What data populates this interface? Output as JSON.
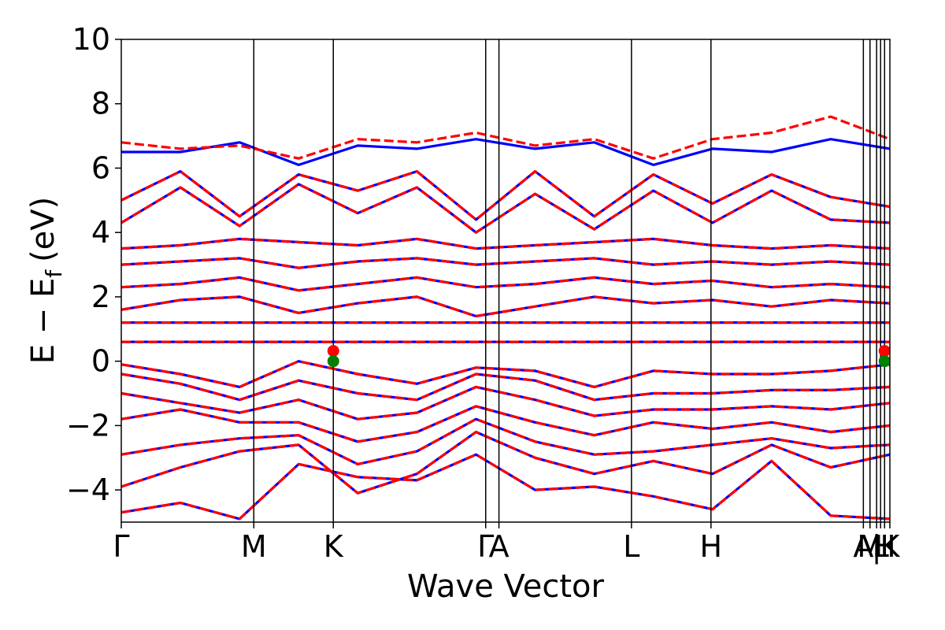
{
  "chart_data": {
    "type": "line",
    "title": "",
    "xlabel": "Wave Vector",
    "ylabel": "E − E",
    "ylabel_sub": "f",
    "ylabel_unit": "(eV)",
    "ylim": [
      -5,
      10
    ],
    "yticks": [
      10,
      8,
      6,
      4,
      2,
      0,
      -2,
      -4
    ],
    "ytick_labels": [
      "10",
      "8",
      "6",
      "4",
      "2",
      "0",
      "−2",
      "−4"
    ],
    "x_range": [
      0,
      5.8
    ],
    "high_symmetry_points": [
      {
        "label": "Γ",
        "x": 0.0
      },
      {
        "label": "M",
        "x": 1.0
      },
      {
        "label": "K",
        "x": 1.6
      },
      {
        "label": "Γ",
        "x": 2.75
      },
      {
        "label": "A",
        "x": 2.85
      },
      {
        "label": "L",
        "x": 3.85
      },
      {
        "label": "H",
        "x": 4.45
      },
      {
        "label": "A",
        "x": 5.6
      },
      {
        "label": "M",
        "x": 5.65
      },
      {
        "label": "|",
        "x": 5.7
      },
      {
        "label": "L",
        "x": 5.73
      },
      {
        "label": "H",
        "x": 5.76
      },
      {
        "label": "K",
        "x": 5.8
      }
    ],
    "grid": false,
    "legend": "none",
    "colors": {
      "series_a": "#0000ff",
      "series_b": "#ff0000",
      "vbm": "#008000",
      "cbm": "#ff0000"
    },
    "series": [
      {
        "style": "solid",
        "color": "#0000ff",
        "bands": [
          [
            -4.7,
            -4.4,
            -4.9,
            -3.2,
            -3.6,
            -3.7,
            -2.9,
            -4.0,
            -3.9,
            -4.2,
            -4.6,
            -3.1,
            -4.8,
            -4.9
          ],
          [
            -3.9,
            -3.3,
            -2.8,
            -2.6,
            -4.1,
            -3.5,
            -2.2,
            -3.0,
            -3.5,
            -3.1,
            -3.5,
            -2.6,
            -3.3,
            -2.9
          ],
          [
            -2.9,
            -2.6,
            -2.4,
            -2.3,
            -3.2,
            -2.8,
            -1.8,
            -2.5,
            -2.9,
            -2.8,
            -2.6,
            -2.4,
            -2.7,
            -2.6
          ],
          [
            -1.8,
            -1.5,
            -1.9,
            -1.9,
            -2.5,
            -2.2,
            -1.4,
            -1.9,
            -2.3,
            -1.9,
            -2.1,
            -1.9,
            -2.2,
            -2.0
          ],
          [
            -1.0,
            -1.3,
            -1.6,
            -1.2,
            -1.8,
            -1.6,
            -0.8,
            -1.2,
            -1.7,
            -1.5,
            -1.5,
            -1.4,
            -1.5,
            -1.3
          ],
          [
            -0.4,
            -0.7,
            -1.2,
            -0.6,
            -1.0,
            -1.2,
            -0.4,
            -0.6,
            -1.2,
            -1.0,
            -1.0,
            -0.9,
            -0.9,
            -0.8
          ],
          [
            -0.1,
            -0.4,
            -0.8,
            0.0,
            -0.4,
            -0.7,
            -0.2,
            -0.3,
            -0.8,
            -0.3,
            -0.4,
            -0.4,
            -0.3,
            -0.1
          ],
          [
            0.6,
            0.6,
            0.6,
            0.6,
            0.6,
            0.6,
            0.6,
            0.6,
            0.6,
            0.6,
            0.6,
            0.6,
            0.6,
            0.6
          ],
          [
            1.2,
            1.2,
            1.2,
            1.2,
            1.2,
            1.2,
            1.2,
            1.2,
            1.2,
            1.2,
            1.2,
            1.2,
            1.2,
            1.2
          ],
          [
            1.6,
            1.9,
            2.0,
            1.5,
            1.8,
            2.0,
            1.4,
            1.7,
            2.0,
            1.8,
            1.9,
            1.7,
            1.9,
            1.8
          ],
          [
            2.3,
            2.4,
            2.6,
            2.2,
            2.4,
            2.6,
            2.3,
            2.4,
            2.6,
            2.4,
            2.5,
            2.3,
            2.4,
            2.3
          ],
          [
            3.0,
            3.1,
            3.2,
            2.9,
            3.1,
            3.2,
            3.0,
            3.1,
            3.2,
            3.0,
            3.1,
            3.0,
            3.1,
            3.0
          ],
          [
            3.5,
            3.6,
            3.8,
            3.7,
            3.6,
            3.8,
            3.5,
            3.6,
            3.7,
            3.8,
            3.6,
            3.5,
            3.6,
            3.5
          ],
          [
            4.3,
            5.4,
            4.2,
            5.5,
            4.6,
            5.4,
            4.0,
            5.2,
            4.1,
            5.3,
            4.3,
            5.3,
            4.4,
            4.3
          ],
          [
            5.0,
            5.9,
            4.5,
            5.8,
            5.3,
            5.9,
            4.4,
            5.9,
            4.5,
            5.8,
            4.9,
            5.8,
            5.1,
            4.8
          ],
          [
            6.5,
            6.5,
            6.8,
            6.1,
            6.7,
            6.6,
            6.9,
            6.6,
            6.8,
            6.1,
            6.6,
            6.5,
            6.9,
            6.6
          ]
        ]
      },
      {
        "style": "dashed",
        "color": "#ff0000",
        "bands": [
          [
            -4.7,
            -4.4,
            -4.9,
            -3.2,
            -3.6,
            -3.7,
            -2.9,
            -4.0,
            -3.9,
            -4.2,
            -4.6,
            -3.1,
            -4.8,
            -4.9
          ],
          [
            -3.9,
            -3.3,
            -2.8,
            -2.6,
            -4.1,
            -3.5,
            -2.2,
            -3.0,
            -3.5,
            -3.1,
            -3.5,
            -2.6,
            -3.3,
            -2.9
          ],
          [
            -2.9,
            -2.6,
            -2.4,
            -2.3,
            -3.2,
            -2.8,
            -1.8,
            -2.5,
            -2.9,
            -2.8,
            -2.6,
            -2.4,
            -2.7,
            -2.6
          ],
          [
            -1.8,
            -1.5,
            -1.9,
            -1.9,
            -2.5,
            -2.2,
            -1.4,
            -1.9,
            -2.3,
            -1.9,
            -2.1,
            -1.9,
            -2.2,
            -2.0
          ],
          [
            -1.0,
            -1.3,
            -1.6,
            -1.2,
            -1.8,
            -1.6,
            -0.8,
            -1.2,
            -1.7,
            -1.5,
            -1.5,
            -1.4,
            -1.5,
            -1.3
          ],
          [
            -0.4,
            -0.7,
            -1.2,
            -0.6,
            -1.0,
            -1.2,
            -0.4,
            -0.6,
            -1.2,
            -1.0,
            -1.0,
            -0.9,
            -0.9,
            -0.8
          ],
          [
            -0.1,
            -0.4,
            -0.8,
            0.0,
            -0.4,
            -0.7,
            -0.2,
            -0.3,
            -0.8,
            -0.3,
            -0.4,
            -0.4,
            -0.3,
            -0.1
          ],
          [
            0.6,
            0.6,
            0.6,
            0.6,
            0.6,
            0.6,
            0.6,
            0.6,
            0.6,
            0.6,
            0.6,
            0.6,
            0.6,
            0.6
          ],
          [
            1.2,
            1.2,
            1.2,
            1.2,
            1.2,
            1.2,
            1.2,
            1.2,
            1.2,
            1.2,
            1.2,
            1.2,
            1.2,
            1.2
          ],
          [
            1.6,
            1.9,
            2.0,
            1.5,
            1.8,
            2.0,
            1.4,
            1.7,
            2.0,
            1.8,
            1.9,
            1.7,
            1.9,
            1.8
          ],
          [
            2.3,
            2.4,
            2.6,
            2.2,
            2.4,
            2.6,
            2.3,
            2.4,
            2.6,
            2.4,
            2.5,
            2.3,
            2.4,
            2.3
          ],
          [
            3.0,
            3.1,
            3.2,
            2.9,
            3.1,
            3.2,
            3.0,
            3.1,
            3.2,
            3.0,
            3.1,
            3.0,
            3.1,
            3.0
          ],
          [
            3.5,
            3.6,
            3.8,
            3.7,
            3.6,
            3.8,
            3.5,
            3.6,
            3.7,
            3.8,
            3.6,
            3.5,
            3.6,
            3.5
          ],
          [
            4.3,
            5.4,
            4.2,
            5.5,
            4.6,
            5.4,
            4.0,
            5.2,
            4.1,
            5.3,
            4.3,
            5.3,
            4.4,
            4.3
          ],
          [
            5.0,
            5.9,
            4.5,
            5.8,
            5.3,
            5.9,
            4.4,
            5.9,
            4.5,
            5.8,
            4.9,
            5.8,
            5.1,
            4.8
          ],
          [
            6.8,
            6.6,
            6.7,
            6.3,
            6.9,
            6.8,
            7.1,
            6.7,
            6.9,
            6.3,
            6.9,
            7.1,
            7.6,
            6.9
          ]
        ]
      }
    ],
    "markers": [
      {
        "x": 1.6,
        "y": 0.32,
        "color": "#ff0000"
      },
      {
        "x": 1.6,
        "y": 0.0,
        "color": "#008000"
      },
      {
        "x": 5.76,
        "y": 0.32,
        "color": "#ff0000"
      },
      {
        "x": 5.76,
        "y": 0.0,
        "color": "#008000"
      }
    ]
  }
}
